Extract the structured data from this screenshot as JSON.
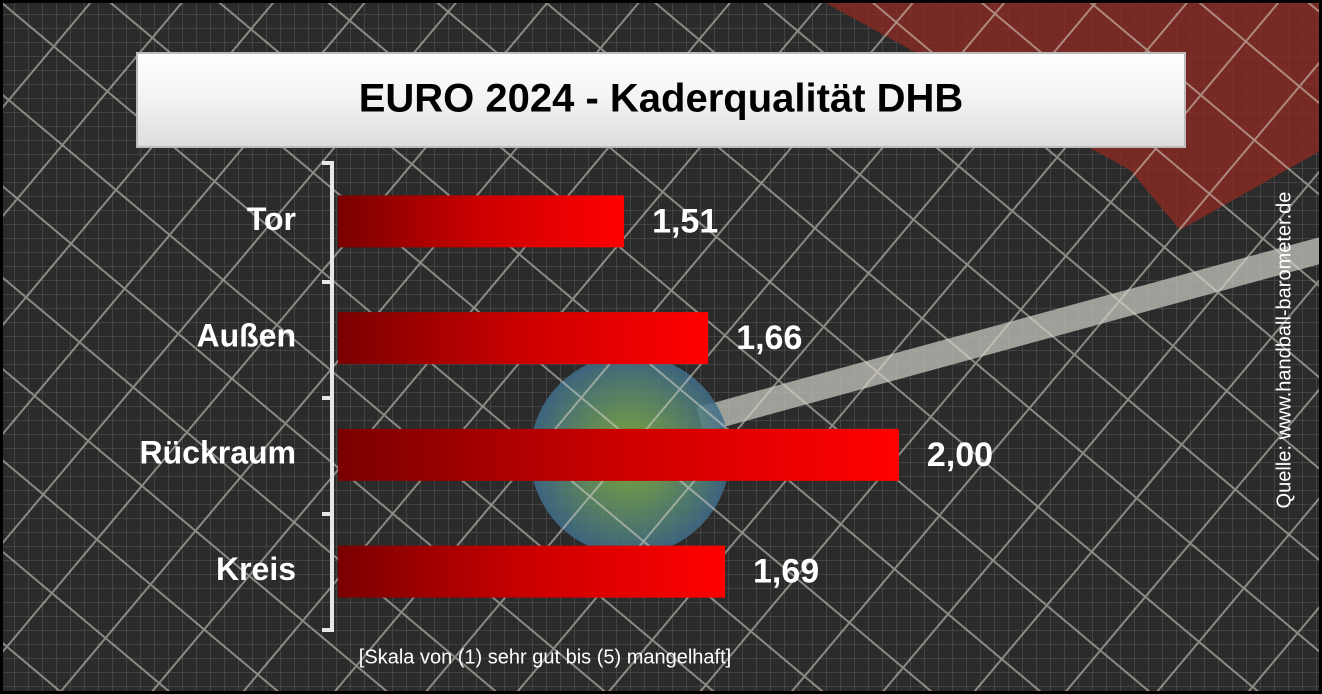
{
  "chart_data": {
    "type": "hbar",
    "title": "EURO 2024 - Kaderqualität DHB",
    "categories": [
      "Tor",
      "Außen",
      "Rückraum",
      "Kreis"
    ],
    "values": [
      1.51,
      1.66,
      2.0,
      1.69
    ],
    "value_labels": [
      "1,51",
      "1,66",
      "2,00",
      "1,69"
    ],
    "color": "#ff0000",
    "xlim": [
      1,
      2.1
    ],
    "note": "[Skala von (1) sehr gut bis (5) mangelhaft]",
    "source": "Quelle: www.handball-barometer.de"
  }
}
